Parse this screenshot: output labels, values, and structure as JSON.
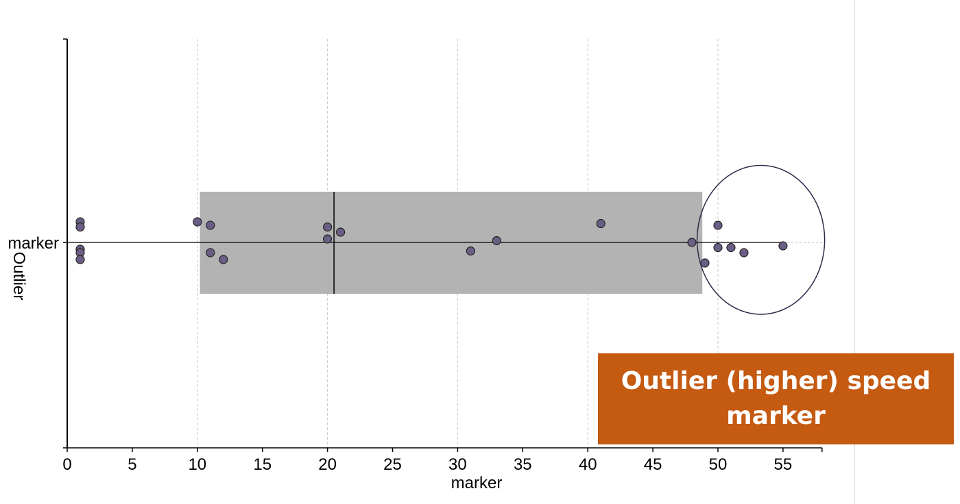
{
  "chart_data": {
    "type": "box",
    "orientation": "horizontal",
    "xlabel": "marker",
    "ylabel": "Outlier",
    "category_label": "marker",
    "xlim": [
      0,
      58
    ],
    "x_ticks": [
      0,
      5,
      10,
      15,
      20,
      25,
      30,
      35,
      40,
      45,
      50,
      55
    ],
    "grid": "vertical-dashed",
    "box": {
      "q1": 10.2,
      "median": 20.5,
      "q3": 48.8,
      "whisker_low": 0,
      "whisker_high": 55
    },
    "points": [
      {
        "x": 1,
        "jitter": 0.12
      },
      {
        "x": 1,
        "jitter": 0.09
      },
      {
        "x": 1,
        "jitter": -0.04
      },
      {
        "x": 1,
        "jitter": -0.06
      },
      {
        "x": 1,
        "jitter": -0.1
      },
      {
        "x": 10,
        "jitter": 0.12
      },
      {
        "x": 11,
        "jitter": 0.1
      },
      {
        "x": 11,
        "jitter": -0.06
      },
      {
        "x": 12,
        "jitter": -0.1
      },
      {
        "x": 20,
        "jitter": 0.09
      },
      {
        "x": 20,
        "jitter": 0.02
      },
      {
        "x": 21,
        "jitter": 0.06
      },
      {
        "x": 31,
        "jitter": -0.05
      },
      {
        "x": 33,
        "jitter": 0.01
      },
      {
        "x": 41,
        "jitter": 0.11
      },
      {
        "x": 48,
        "jitter": 0.0
      },
      {
        "x": 49,
        "jitter": -0.12
      },
      {
        "x": 50,
        "jitter": 0.1
      },
      {
        "x": 50,
        "jitter": -0.03
      },
      {
        "x": 51,
        "jitter": -0.03
      },
      {
        "x": 52,
        "jitter": -0.06
      },
      {
        "x": 55,
        "jitter": -0.02
      }
    ],
    "highlight": {
      "shape": "ellipse",
      "x_range": [
        48.4,
        58.2
      ],
      "y_range": [
        -0.42,
        0.45
      ]
    },
    "annotation": {
      "line1": "Outlier (higher) speed",
      "line2": "marker"
    },
    "colors": {
      "box_fill": "#b3b3b3",
      "point_fill": "#6a5e85",
      "point_stroke": "#222222",
      "annotation_bg": "#c55a11",
      "highlight_stroke": "#2d2a4a"
    }
  }
}
